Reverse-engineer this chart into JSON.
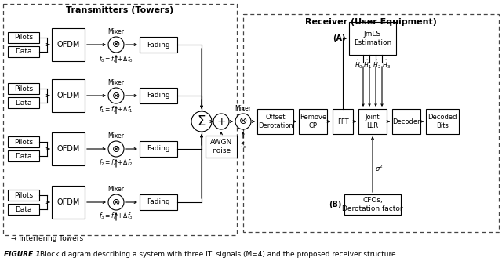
{
  "title": "FIGURE 1.",
  "caption": "Block diagram describing a system with three ITI signals (Μ=4) and the proposed receiver structure.",
  "transmitter_title": "Transmitters (Towers)",
  "receiver_title": "Receiver (User Equipment)",
  "interfering_label": "→ Interfering Towers",
  "estimation_label": "JmLS\nEstimation",
  "channel_hats": "$\\hat{H}_0\\ \\hat{H}_1\\ \\hat{H}_2\\ \\hat{H}_3$",
  "cfo_label": "CFOs,\nDerotation factor",
  "sigma_label": "$\\sigma^2$",
  "A_label": "(A)",
  "B_label": "(B)",
  "mixer_label": "Mixer",
  "fc_label": "$f_c$",
  "awgn_label": "AWGN\nnoise",
  "bg_color": "#ffffff"
}
